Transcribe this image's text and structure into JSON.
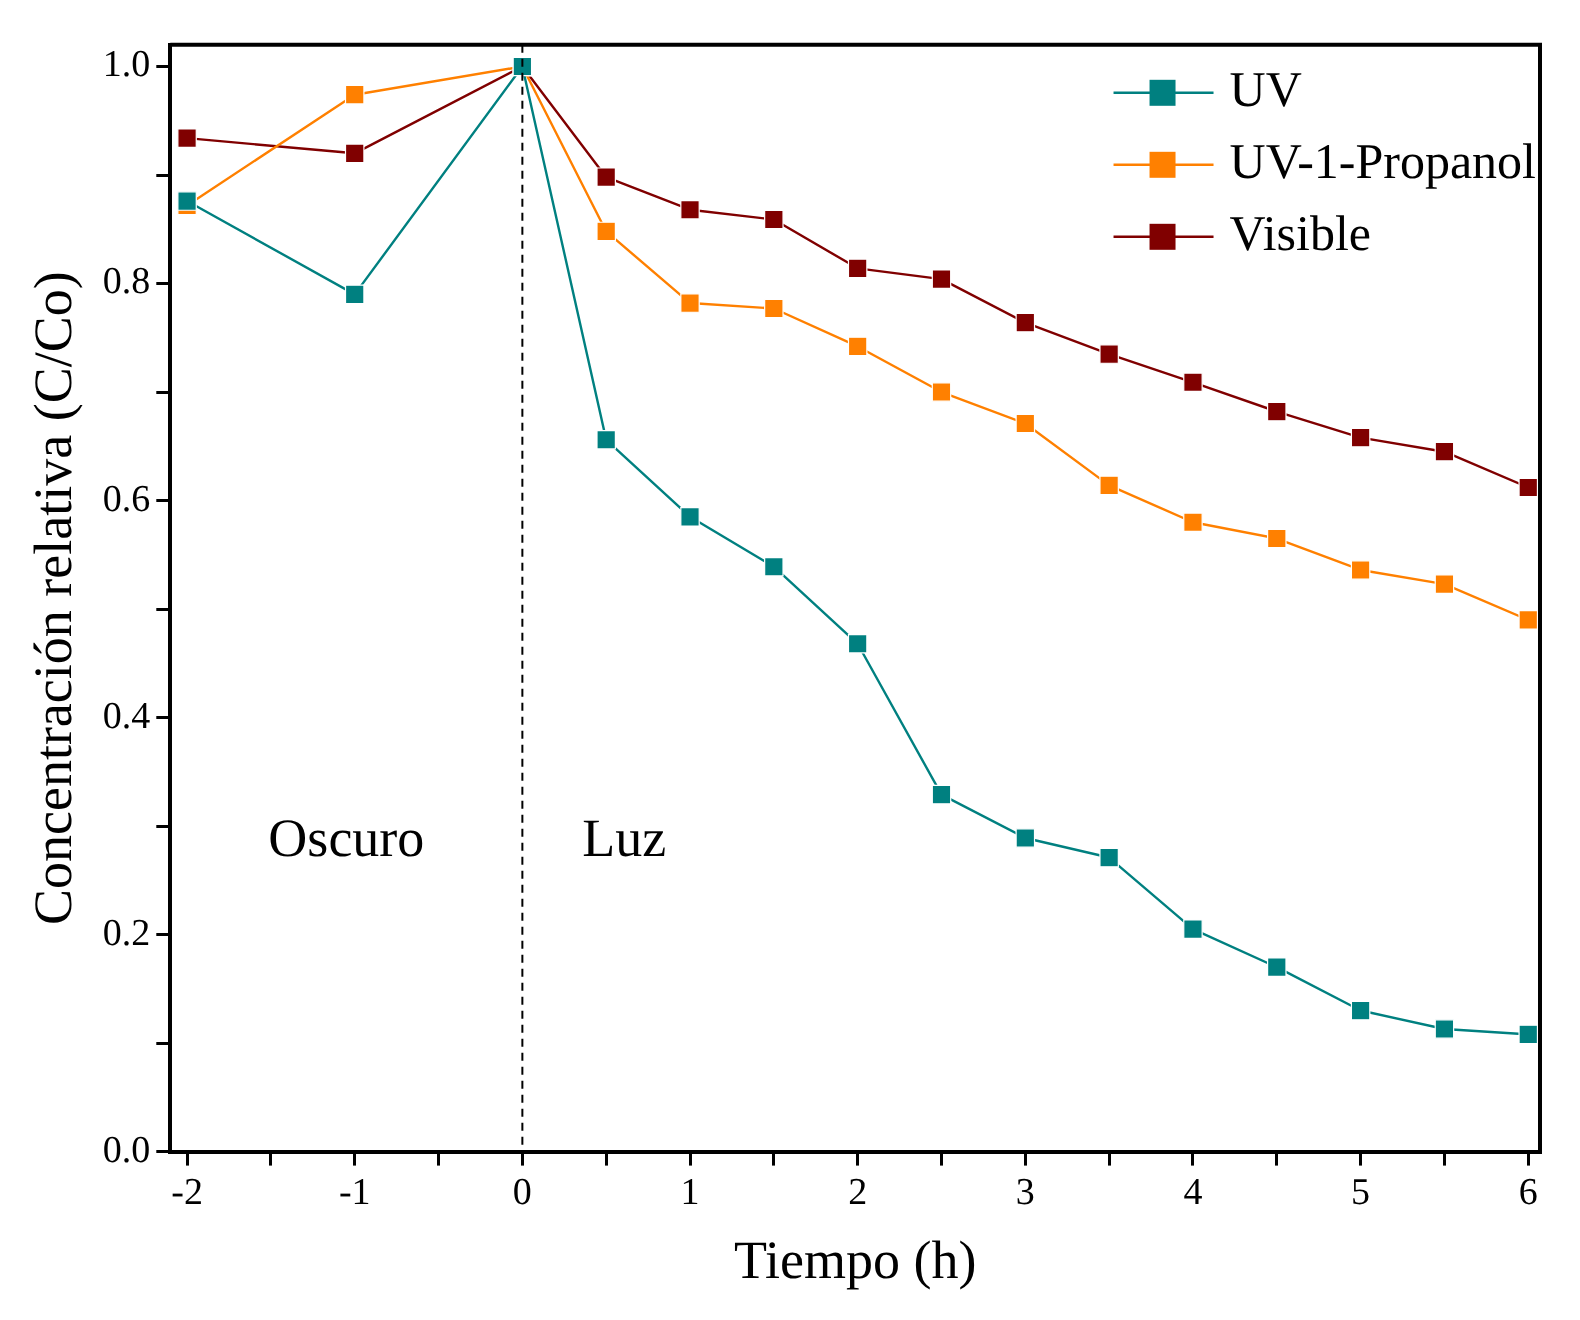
{
  "chart_data": {
    "type": "line",
    "xlabel": "Tiempo (h)",
    "ylabel": "Concentración relativa (C/Co)",
    "x": [
      -2,
      -1,
      0,
      0.5,
      1,
      1.5,
      2,
      2.5,
      3,
      3.5,
      4,
      4.5,
      5,
      5.5,
      6
    ],
    "series": [
      {
        "name": "UV",
        "color": "#008080",
        "values": [
          0.876,
          0.79,
          1.0,
          0.656,
          0.585,
          0.539,
          0.468,
          0.329,
          0.289,
          0.271,
          0.205,
          0.17,
          0.13,
          0.113,
          0.108
        ]
      },
      {
        "name": "UV-1-Propanol",
        "color": "#ff8000",
        "values": [
          0.872,
          0.974,
          1.0,
          0.848,
          0.782,
          0.777,
          0.742,
          0.7,
          0.671,
          0.614,
          0.58,
          0.565,
          0.536,
          0.523,
          0.49
        ]
      },
      {
        "name": "Visible",
        "color": "#800000",
        "values": [
          0.934,
          0.92,
          1.0,
          0.898,
          0.868,
          0.859,
          0.814,
          0.804,
          0.764,
          0.735,
          0.709,
          0.682,
          0.658,
          0.645,
          0.612
        ]
      }
    ],
    "xlim": [
      -2.1,
      6.07
    ],
    "ylim": [
      0,
      1.02
    ],
    "xticks": [
      -2,
      {
        "value": -1.5,
        "label": null
      },
      -1,
      {
        "value": -0.5,
        "label": null
      },
      0,
      {
        "value": 0.5,
        "label": null
      },
      1,
      {
        "value": 1.5,
        "label": null
      },
      2,
      {
        "value": 2.5,
        "label": null
      },
      3,
      {
        "value": 3.5,
        "label": null
      },
      4,
      {
        "value": 4.5,
        "label": null
      },
      5,
      {
        "value": 5.5,
        "label": null
      },
      6
    ],
    "yticks": [
      {
        "value": 0,
        "label": "0.0"
      },
      {
        "value": 0.1,
        "label": null
      },
      0.2,
      {
        "value": 0.3,
        "label": null
      },
      0.4,
      {
        "value": 0.5,
        "label": null
      },
      0.6,
      {
        "value": 0.7,
        "label": null
      },
      0.8,
      {
        "value": 0.9,
        "label": null
      },
      {
        "value": 1,
        "label": "1.0"
      }
    ],
    "ref_lines": [
      {
        "axis": "x",
        "value": 0,
        "color": "#000000",
        "line_style": "dashed"
      }
    ],
    "annotations": [
      "Oscuro",
      "Luz"
    ],
    "legend": "top right",
    "grid": false,
    "marker": "square",
    "line_style": "solid"
  }
}
